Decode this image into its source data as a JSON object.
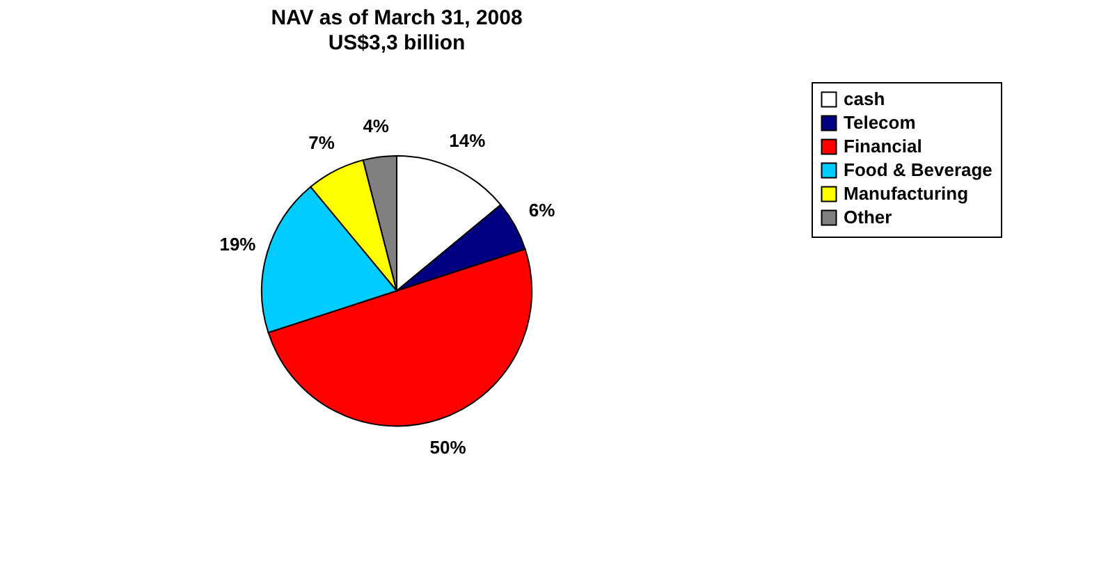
{
  "chart_data": {
    "type": "pie",
    "title": "NAV as of March 31, 2008",
    "subtitle": "US$3,3 billion",
    "categories": [
      "cash",
      "Telecom",
      "Financial",
      "Food & Beverage",
      "Manufacturing",
      "Other"
    ],
    "values": [
      14,
      6,
      50,
      19,
      7,
      4
    ],
    "colors": [
      "#ffffff",
      "#000080",
      "#ff0000",
      "#00ccff",
      "#ffff00",
      "#808080"
    ],
    "value_labels": [
      "14%",
      "6%",
      "50%",
      "19%",
      "7%",
      "4%"
    ],
    "legend": "right"
  }
}
